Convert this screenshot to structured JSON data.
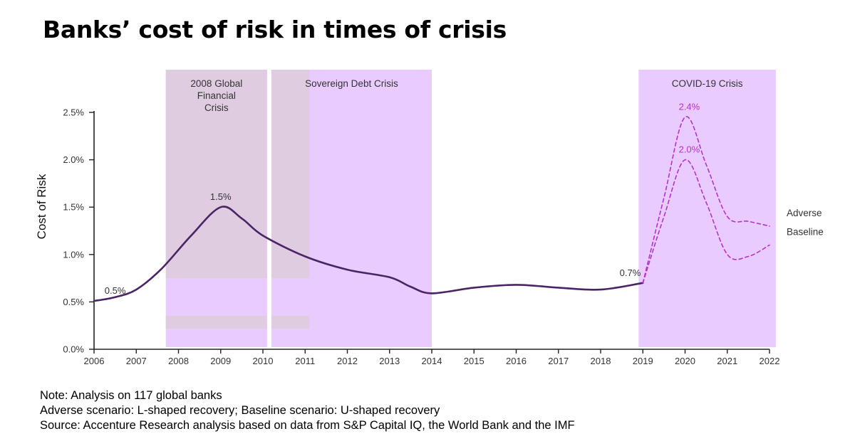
{
  "title": "Banks’ cost of risk in times of crisis",
  "colors": {
    "band": "#e9cbff",
    "band_overlay": "#dfcbde",
    "historic_line": "#4a2566",
    "scenario_line": "#b136c8",
    "axis": "#222222",
    "text": "#333333"
  },
  "chart_data": {
    "type": "line",
    "ylabel": "Cost of Risk",
    "xlabel": "",
    "ylim": [
      0.0,
      2.5
    ],
    "yticks": [
      {
        "value": 0.0,
        "label": "0.0%"
      },
      {
        "value": 0.5,
        "label": "0.5%"
      },
      {
        "value": 1.0,
        "label": "1.0%"
      },
      {
        "value": 1.5,
        "label": "1.5%"
      },
      {
        "value": 2.0,
        "label": "2.0%"
      },
      {
        "value": 2.5,
        "label": "2.5%"
      }
    ],
    "xlim": [
      2006,
      2022
    ],
    "xticks": [
      {
        "value": 2006,
        "label": "2006"
      },
      {
        "value": 2007,
        "label": "2007"
      },
      {
        "value": 2008,
        "label": "2008"
      },
      {
        "value": 2009,
        "label": "2009"
      },
      {
        "value": 2010,
        "label": "2010"
      },
      {
        "value": 2011,
        "label": "2011"
      },
      {
        "value": 2012,
        "label": "2012"
      },
      {
        "value": 2013,
        "label": "2013"
      },
      {
        "value": 2014,
        "label": "2014"
      },
      {
        "value": 2015,
        "label": "2015"
      },
      {
        "value": 2016,
        "label": "2016"
      },
      {
        "value": 2017,
        "label": "2017"
      },
      {
        "value": 2018,
        "label": "2018"
      },
      {
        "value": 2019,
        "label": "2019"
      },
      {
        "value": 2020,
        "label": "2020"
      },
      {
        "value": 2021,
        "label": "2021"
      },
      {
        "value": 2022,
        "label": "2022"
      }
    ],
    "crisis_periods": [
      {
        "label_lines": [
          "2008 Global",
          "Financial",
          "Crisis"
        ],
        "start": 2007.7,
        "end": 2010.1
      },
      {
        "label_lines": [
          "Sovereign Debt Crisis"
        ],
        "start": 2010.2,
        "end": 2014.0
      },
      {
        "label_lines": [
          "COVID-19 Crisis"
        ],
        "start": 2018.9,
        "end": 2022.15
      }
    ],
    "series": [
      {
        "name": "Historic",
        "style": "solid",
        "x": [
          2006,
          2006.5,
          2007,
          2007.6,
          2008.3,
          2009,
          2009.5,
          2010,
          2011,
          2012,
          2013,
          2013.5,
          2014,
          2015,
          2016,
          2017,
          2018,
          2019
        ],
        "values": [
          0.51,
          0.55,
          0.63,
          0.85,
          1.2,
          1.5,
          1.38,
          1.2,
          0.98,
          0.84,
          0.76,
          0.66,
          0.59,
          0.65,
          0.68,
          0.65,
          0.63,
          0.7
        ]
      },
      {
        "name": "Adverse",
        "style": "dashed",
        "x": [
          2019,
          2019.5,
          2020,
          2020.5,
          2021,
          2021.5,
          2022
        ],
        "values": [
          0.7,
          1.6,
          2.45,
          1.95,
          1.4,
          1.35,
          1.3
        ]
      },
      {
        "name": "Baseline",
        "style": "dashed",
        "x": [
          2019,
          2019.5,
          2020,
          2020.5,
          2021,
          2021.5,
          2022
        ],
        "values": [
          0.7,
          1.4,
          2.0,
          1.55,
          1.0,
          0.98,
          1.1
        ]
      }
    ],
    "annotations": [
      {
        "text": "0.5%",
        "x": 2006.5,
        "y": 0.51,
        "style": "dark"
      },
      {
        "text": "1.5%",
        "x": 2009.0,
        "y": 1.5,
        "style": "dark"
      },
      {
        "text": "0.7%",
        "x": 2018.7,
        "y": 0.7,
        "style": "dark"
      },
      {
        "text": "2.4%",
        "x": 2020.1,
        "y": 2.45,
        "style": "accent"
      },
      {
        "text": "2.0%",
        "x": 2020.1,
        "y": 2.0,
        "style": "accent"
      }
    ],
    "legend": [
      {
        "text": "Adverse",
        "series": "Adverse"
      },
      {
        "text": "Baseline",
        "series": "Baseline"
      }
    ]
  },
  "notes": [
    "Note: Analysis on 117 global banks",
    "Adverse scenario: L-shaped recovery; Baseline scenario: U-shaped recovery",
    "Source: Accenture Research analysis based on data from S&P Capital IQ, the World Bank and the IMF"
  ]
}
